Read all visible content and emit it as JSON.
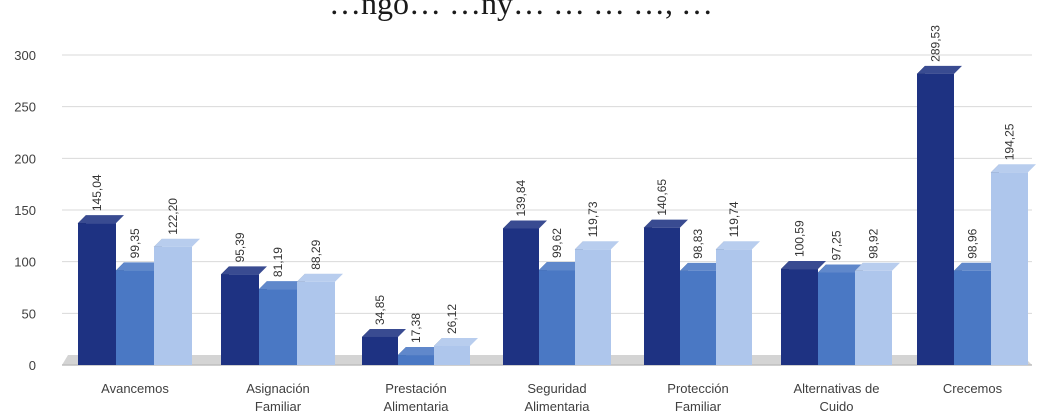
{
  "chart_data": {
    "type": "bar",
    "title": "…ngo… …ny… … … …, …",
    "title_note": "partially cut off at top edge",
    "categories": [
      [
        "Avancemos"
      ],
      [
        "Asignación",
        "Familiar"
      ],
      [
        "Prestación",
        "Alimentaria"
      ],
      [
        "Seguridad",
        "Alimentaria"
      ],
      [
        "Protección",
        "Familiar"
      ],
      [
        "Alternativas de",
        "Cuido"
      ],
      [
        "Crecemos"
      ]
    ],
    "series": [
      {
        "values": [
          145.04,
          95.39,
          34.85,
          139.84,
          140.65,
          100.59,
          289.53
        ],
        "labels": [
          "145,04",
          "95,39",
          "34,85",
          "139,84",
          "140,65",
          "100,59",
          "289,53"
        ]
      },
      {
        "values": [
          99.35,
          81.19,
          17.38,
          99.62,
          98.83,
          97.25,
          98.96
        ],
        "labels": [
          "99,35",
          "81,19",
          "17,38",
          "99,62",
          "98,83",
          "97,25",
          "98,96"
        ]
      },
      {
        "values": [
          122.2,
          88.29,
          26.12,
          119.73,
          119.74,
          98.92,
          194.25
        ],
        "labels": [
          "122,20",
          "88,29",
          "26,12",
          "119,73",
          "119,74",
          "98,92",
          "194,25"
        ]
      }
    ],
    "yticks": [
      "0",
      "50",
      "100",
      "150",
      "200",
      "250",
      "300"
    ],
    "ylim": [
      0,
      300
    ],
    "grid": true,
    "legend": "none",
    "style": "3d-clustered-column",
    "colors": [
      "#1e3282",
      "#4a78c4",
      "#aec6ec"
    ]
  }
}
